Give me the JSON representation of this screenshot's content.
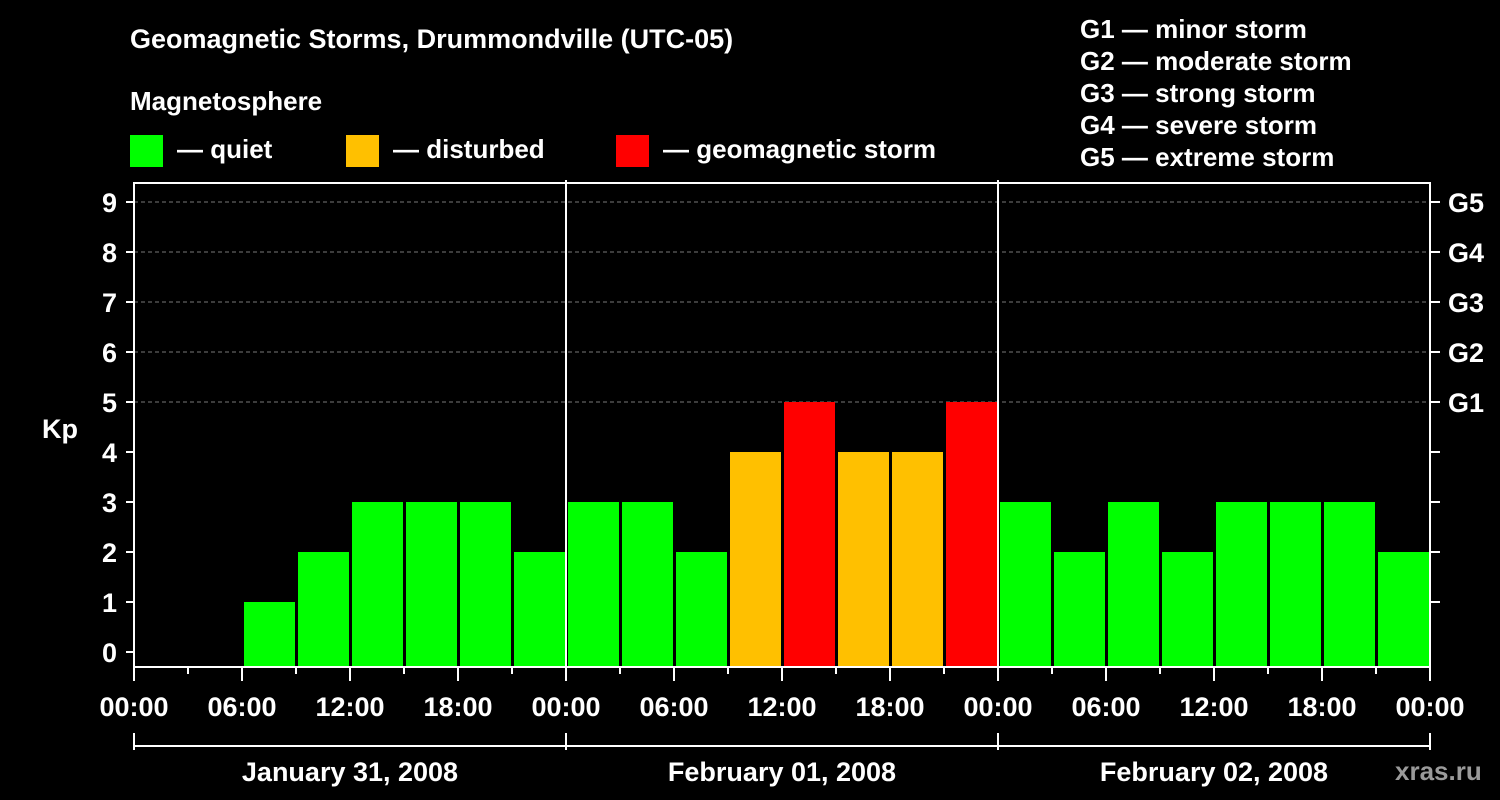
{
  "title": "Geomagnetic Storms, Drummondville (UTC-05)",
  "legend": {
    "title": "Magnetosphere",
    "items": [
      {
        "label": "— quiet",
        "color": "#00ff00"
      },
      {
        "label": "— disturbed",
        "color": "#ffc000"
      },
      {
        "label": "— geomagnetic storm",
        "color": "#ff0000"
      }
    ]
  },
  "storm_scale": [
    "G1 — minor storm",
    "G2 — moderate storm",
    "G3 — strong storm",
    "G4 — severe storm",
    "G5 — extreme storm"
  ],
  "watermark": "xras.ru",
  "chart_data": {
    "type": "bar",
    "ylabel": "Kp",
    "ylim": [
      0,
      9
    ],
    "yticks": [
      "0",
      "1",
      "2",
      "3",
      "4",
      "5",
      "6",
      "7",
      "8",
      "9"
    ],
    "right_ticks": [
      {
        "kp": 5,
        "label": "G1"
      },
      {
        "kp": 6,
        "label": "G2"
      },
      {
        "kp": 7,
        "label": "G3"
      },
      {
        "kp": 8,
        "label": "G4"
      },
      {
        "kp": 9,
        "label": "G5"
      }
    ],
    "xticks": [
      "00:00",
      "06:00",
      "12:00",
      "18:00",
      "00:00",
      "06:00",
      "12:00",
      "18:00",
      "00:00",
      "06:00",
      "12:00",
      "18:00",
      "00:00"
    ],
    "days": [
      "January 31, 2008",
      "February 01, 2008",
      "February 02, 2008"
    ],
    "colors": {
      "quiet": "#00ff00",
      "disturbed": "#ffc000",
      "storm": "#ff0000"
    },
    "series": [
      {
        "categories": [
          "Jan 31 00:00",
          "Jan 31 03:00",
          "Jan 31 06:00",
          "Jan 31 09:00",
          "Jan 31 12:00",
          "Jan 31 15:00",
          "Jan 31 18:00",
          "Jan 31 21:00",
          "Feb 01 00:00",
          "Feb 01 03:00",
          "Feb 01 06:00",
          "Feb 01 09:00",
          "Feb 01 12:00",
          "Feb 01 15:00",
          "Feb 01 18:00",
          "Feb 01 21:00",
          "Feb 02 00:00",
          "Feb 02 03:00",
          "Feb 02 06:00",
          "Feb 02 09:00",
          "Feb 02 12:00",
          "Feb 02 15:00",
          "Feb 02 18:00",
          "Feb 02 21:00"
        ],
        "values": [
          null,
          null,
          1,
          2,
          3,
          3,
          3,
          2,
          3,
          3,
          2,
          4,
          5,
          4,
          4,
          5,
          3,
          2,
          3,
          2,
          3,
          3,
          3,
          2
        ]
      }
    ]
  }
}
